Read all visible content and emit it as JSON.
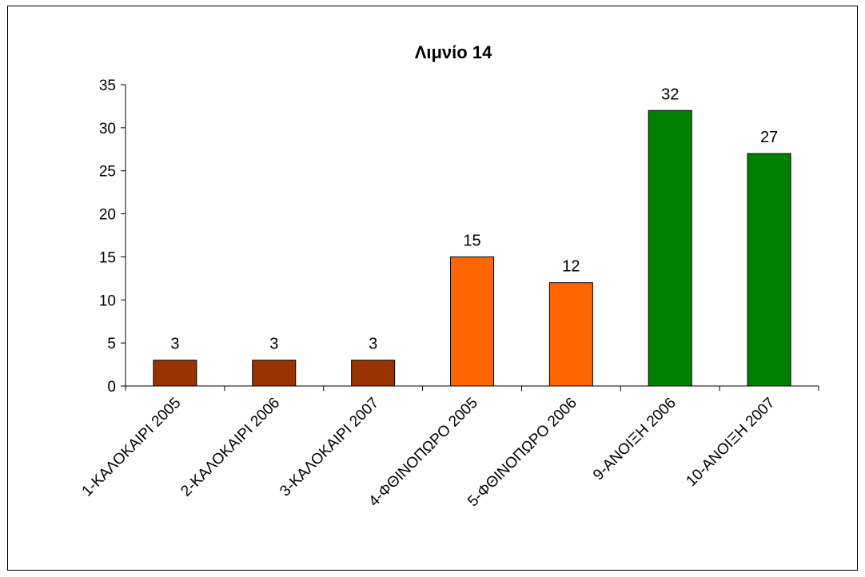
{
  "chart_data": {
    "type": "bar",
    "title": "Λιμνίο 14",
    "xlabel": "",
    "ylabel": "",
    "ylim": [
      0,
      35
    ],
    "yticks": [
      0,
      5,
      10,
      15,
      20,
      25,
      30,
      35
    ],
    "categories": [
      "1-ΚΑΛΟΚΑΙΡΙ 2005",
      "2-ΚΑΛΟΚΑΙΡΙ 2006",
      "3-ΚΑΛΟΚΑΙΡΙ 2007",
      "4-ΦΘΙΝΟΠΩΡΟ 2005",
      "5-ΦΘΙΝΟΠΩΡΟ 2006",
      "9-ΑΝΟΙΞΗ 2006",
      "10-ΑΝΟΙΞΗ 2007"
    ],
    "values": [
      3,
      3,
      3,
      15,
      12,
      32,
      27
    ],
    "bar_colors": [
      "#993300",
      "#993300",
      "#993300",
      "#ff6600",
      "#ff6600",
      "#008000",
      "#008000"
    ],
    "legend": "none",
    "grid": false
  }
}
